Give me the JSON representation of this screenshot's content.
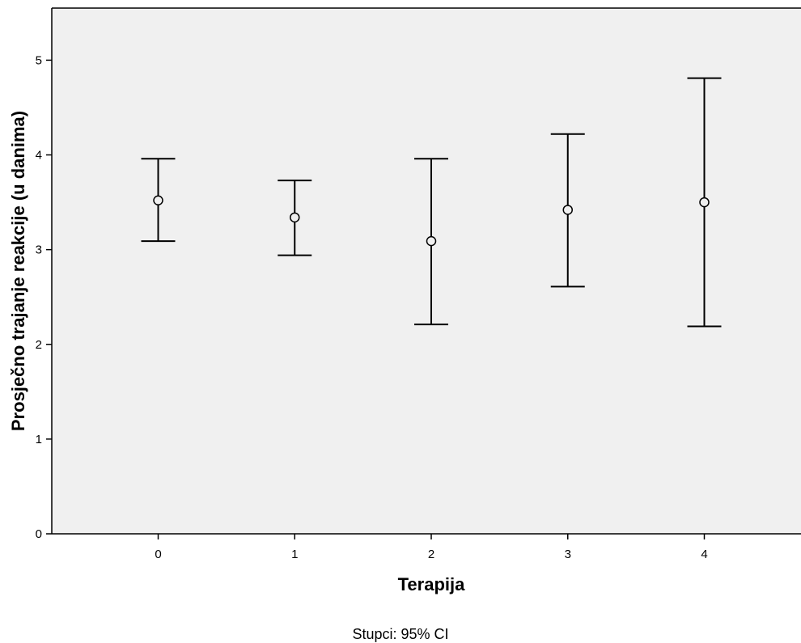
{
  "chart_data": {
    "type": "errorbar",
    "xlabel": "Terapija",
    "ylabel": "Prosječno trajanje reakcije (u danima)",
    "footnote": "Stupci: 95% CI",
    "categories": [
      "0",
      "1",
      "2",
      "3",
      "4"
    ],
    "means": [
      3.52,
      3.34,
      3.09,
      3.42,
      3.5
    ],
    "ci_lower": [
      3.09,
      2.94,
      2.21,
      2.61,
      2.19
    ],
    "ci_upper": [
      3.96,
      3.73,
      3.96,
      4.22,
      4.81
    ],
    "yticks": [
      "0",
      "1",
      "2",
      "3",
      "4",
      "5"
    ],
    "ylim": [
      0,
      5.55
    ],
    "grid": false,
    "legend": "none",
    "plot_background": "#f0f0f0",
    "marker": "open-circle"
  }
}
